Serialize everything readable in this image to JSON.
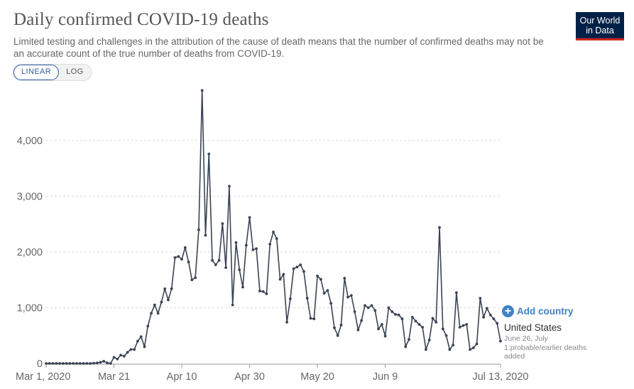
{
  "header": {
    "title": "Daily confirmed COVID-19 deaths",
    "subtitle": "Limited testing and challenges in the attribution of the cause of death means that the number of confirmed deaths may not be an accurate count of the true number of deaths from COVID-19."
  },
  "logo": {
    "line1": "Our World",
    "line2": "in Data"
  },
  "controls": {
    "linear_label": "LINEAR",
    "log_label": "LOG"
  },
  "legend": {
    "add_country_label": "Add country",
    "add_icon": "plus-circle-icon",
    "entity_name": "United States",
    "annotation": "June 26, July 1:probable/earlier deaths added"
  },
  "colors": {
    "series": "#3a4454",
    "accent": "#3e83c8",
    "logo_bg": "#002147",
    "logo_bar": "#ce261e"
  },
  "chart_data": {
    "type": "line",
    "title": "Daily confirmed COVID-19 deaths",
    "xlabel": "",
    "ylabel": "",
    "x_start": "Mar 1, 2020",
    "x_end": "Jul 13, 2020",
    "ylim": [
      0,
      5000
    ],
    "yticks": [
      0,
      1000,
      2000,
      3000,
      4000
    ],
    "ytick_labels": [
      "0",
      "1,000",
      "2,000",
      "3,000",
      "4,000"
    ],
    "xticks": [
      {
        "day": 0,
        "label": "Mar 1, 2020"
      },
      {
        "day": 20,
        "label": "Mar 21"
      },
      {
        "day": 40,
        "label": "Apr 10"
      },
      {
        "day": 60,
        "label": "Apr 30"
      },
      {
        "day": 80,
        "label": "May 20"
      },
      {
        "day": 100,
        "label": "Jun 9"
      },
      {
        "day": 134,
        "label": "Jul 13, 2020"
      }
    ],
    "grid": true,
    "series": [
      {
        "name": "United States",
        "values": [
          0,
          0,
          0,
          0,
          0,
          0,
          0,
          0,
          0,
          0,
          0,
          0,
          0,
          0,
          5,
          10,
          20,
          40,
          10,
          0,
          110,
          80,
          150,
          130,
          200,
          250,
          250,
          400,
          480,
          300,
          670,
          900,
          1050,
          900,
          1100,
          1340,
          1140,
          1340,
          1900,
          1920,
          1870,
          2080,
          1820,
          1500,
          1540,
          2400,
          4900,
          2300,
          3760,
          1850,
          1770,
          1850,
          2510,
          1720,
          3180,
          1050,
          2170,
          1680,
          1370,
          2120,
          2620,
          2040,
          2060,
          1300,
          1290,
          1250,
          2140,
          2360,
          2240,
          1510,
          1600,
          740,
          1160,
          1700,
          1730,
          1770,
          1650,
          1170,
          810,
          800,
          1570,
          1510,
          1260,
          1310,
          1080,
          640,
          500,
          690,
          1530,
          1190,
          1220,
          930,
          600,
          770,
          1040,
          1000,
          1040,
          950,
          620,
          700,
          490,
          1000,
          930,
          880,
          870,
          800,
          300,
          430,
          830,
          760,
          700,
          650,
          250,
          420,
          810,
          740,
          2440,
          620,
          500,
          250,
          330,
          1270,
          650,
          680,
          700,
          250,
          280,
          350,
          1170,
          830,
          990,
          870,
          800,
          720,
          400
        ]
      }
    ]
  }
}
